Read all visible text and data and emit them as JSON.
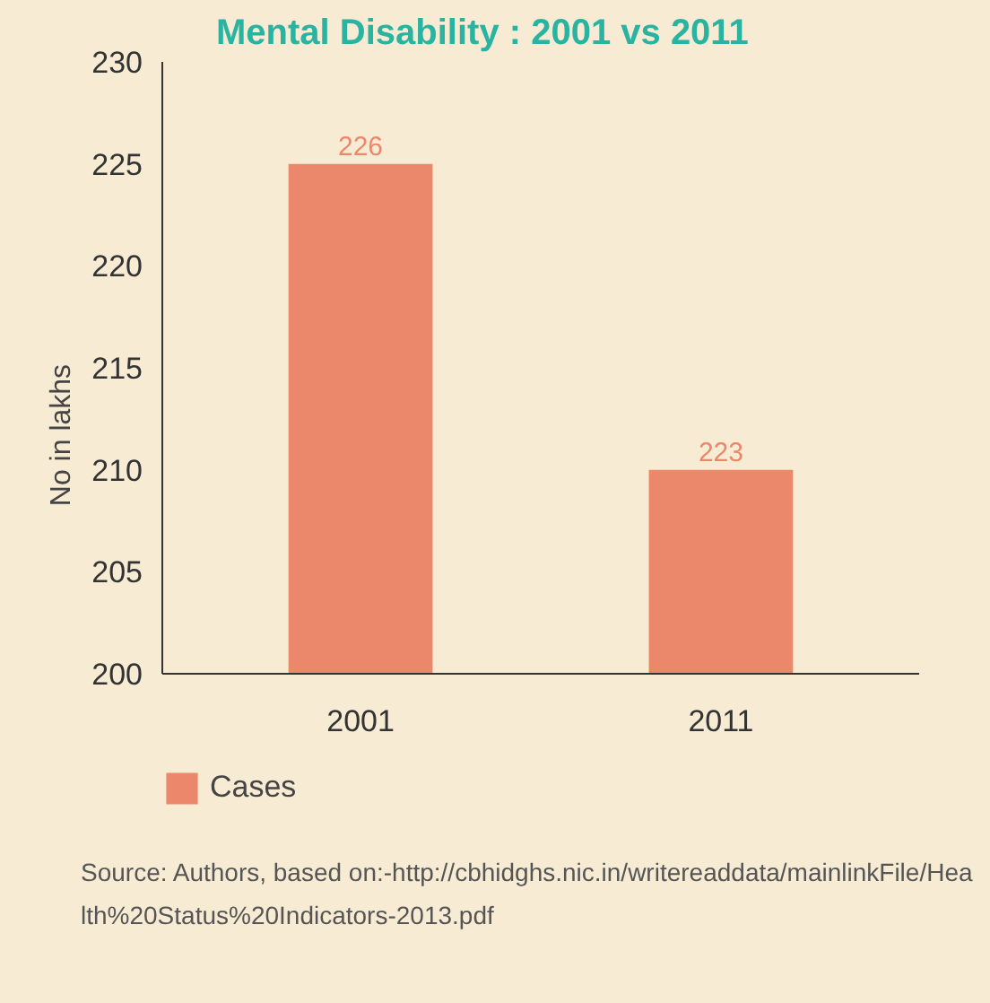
{
  "chart_data": {
    "type": "bar",
    "title": "Mental Disability : 2001 vs 2011",
    "ylabel": "No in lakhs",
    "categories": [
      "2001",
      "2011"
    ],
    "series": [
      {
        "name": "Cases",
        "color": "#eb886c",
        "values": [
          225,
          210
        ]
      }
    ],
    "value_labels": [
      "226",
      "223"
    ],
    "ylim": [
      200,
      230
    ],
    "yticks": [
      200,
      205,
      210,
      215,
      220,
      225,
      230
    ],
    "grid": false,
    "legend": "bottom left",
    "annotations": [
      "Source: Authors, based on:-http://cbhidghs.nic.in/writereaddata/mainlinkFile/Health%20Status%20Indicators-2013.pdf"
    ]
  }
}
